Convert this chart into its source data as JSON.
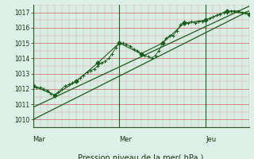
{
  "title": "",
  "xlabel": "Pression niveau de la mer( hPa )",
  "ylabel": "",
  "bg_color": "#dff0e8",
  "plot_bg_color": "#d8eee4",
  "line_color": "#1a5c1a",
  "ylim": [
    1009.5,
    1017.5
  ],
  "yticks": [
    1010,
    1011,
    1012,
    1013,
    1014,
    1015,
    1016,
    1017
  ],
  "day_labels": [
    "Mar",
    "Mer",
    "Jeu"
  ],
  "day_positions": [
    0,
    48,
    96
  ],
  "total_hours": 120,
  "series_plus": {
    "x": [
      0,
      2,
      4,
      6,
      8,
      10,
      12,
      14,
      16,
      18,
      20,
      22,
      24,
      26,
      28,
      30,
      32,
      34,
      36,
      38,
      40,
      42,
      44,
      46,
      48,
      50,
      52,
      54,
      56,
      58,
      60,
      62,
      64,
      66,
      68,
      70,
      72,
      74,
      76,
      78,
      80,
      82,
      84,
      86,
      88,
      90,
      92,
      94,
      96,
      98,
      100,
      102,
      104,
      106,
      108,
      110,
      112,
      114,
      116,
      118,
      120
    ],
    "y": [
      1012.2,
      1012.1,
      1012.1,
      1012.0,
      1011.9,
      1011.7,
      1011.6,
      1011.8,
      1012.0,
      1012.2,
      1012.3,
      1012.4,
      1012.5,
      1012.7,
      1012.9,
      1013.1,
      1013.2,
      1013.3,
      1013.5,
      1013.7,
      1013.8,
      1014.0,
      1014.3,
      1014.7,
      1015.0,
      1015.0,
      1014.9,
      1014.8,
      1014.6,
      1014.5,
      1014.3,
      1014.2,
      1014.1,
      1014.0,
      1014.2,
      1014.5,
      1015.0,
      1015.3,
      1015.5,
      1015.5,
      1015.8,
      1016.2,
      1016.4,
      1016.3,
      1016.4,
      1016.3,
      1016.4,
      1016.4,
      1016.5,
      1016.6,
      1016.7,
      1016.8,
      1016.9,
      1017.0,
      1017.0,
      1017.1,
      1017.1,
      1017.1,
      1017.0,
      1017.0,
      1016.9
    ]
  },
  "series_diamond": {
    "x": [
      0,
      12,
      24,
      36,
      48,
      60,
      72,
      84,
      96,
      108,
      120
    ],
    "y": [
      1012.2,
      1011.6,
      1012.5,
      1013.7,
      1015.0,
      1014.3,
      1015.0,
      1016.3,
      1016.5,
      1017.1,
      1016.9
    ]
  },
  "trend_line1": {
    "x": [
      0,
      120
    ],
    "y": [
      1010.0,
      1017.1
    ]
  },
  "trend_line2": {
    "x": [
      0,
      120
    ],
    "y": [
      1010.8,
      1017.4
    ]
  }
}
